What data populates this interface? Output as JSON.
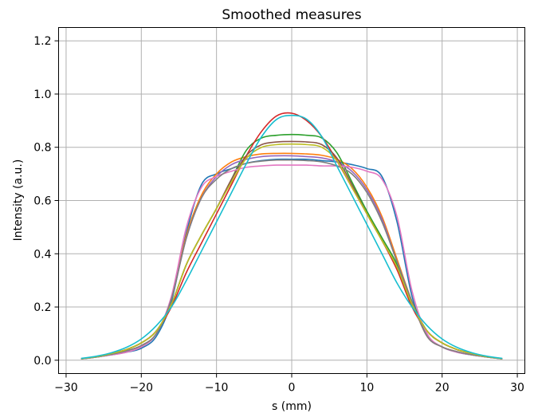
{
  "chart_data": {
    "type": "line",
    "title": "Smoothed measures",
    "xlabel": "s (mm)",
    "ylabel": "Intensity (a.u.)",
    "xlim": [
      -31,
      31
    ],
    "ylim": [
      -0.05,
      1.25
    ],
    "xticks": [
      -30,
      -20,
      -10,
      0,
      10,
      20,
      30
    ],
    "xtick_labels": [
      "−30",
      "−20",
      "−10",
      "0",
      "10",
      "20",
      "30"
    ],
    "yticks": [
      0.0,
      0.2,
      0.4,
      0.6,
      0.8,
      1.0,
      1.2
    ],
    "ytick_labels": [
      "0.0",
      "0.2",
      "0.4",
      "0.6",
      "0.8",
      "1.0",
      "1.2"
    ],
    "grid": true,
    "x": [
      -28,
      -26,
      -24,
      -22,
      -20,
      -18,
      -16,
      -14,
      -12,
      -10,
      -8,
      -6,
      -4,
      -2,
      0,
      2,
      4,
      6,
      8,
      10,
      12,
      14,
      16,
      18,
      20,
      22,
      24,
      26,
      28
    ],
    "series": [
      {
        "color": "#1f77b4",
        "values": [
          0.005,
          0.012,
          0.02,
          0.03,
          0.045,
          0.09,
          0.22,
          0.48,
          0.66,
          0.7,
          0.72,
          0.74,
          0.75,
          0.755,
          0.755,
          0.755,
          0.75,
          0.745,
          0.735,
          0.72,
          0.69,
          0.52,
          0.24,
          0.095,
          0.05,
          0.03,
          0.02,
          0.012,
          0.005
        ]
      },
      {
        "color": "#ff7f0e",
        "values": [
          0.005,
          0.012,
          0.022,
          0.035,
          0.055,
          0.1,
          0.23,
          0.47,
          0.62,
          0.7,
          0.745,
          0.765,
          0.775,
          0.777,
          0.777,
          0.775,
          0.77,
          0.755,
          0.72,
          0.65,
          0.54,
          0.38,
          0.22,
          0.09,
          0.05,
          0.032,
          0.02,
          0.012,
          0.005
        ]
      },
      {
        "color": "#2ca02c",
        "values": [
          0.006,
          0.013,
          0.025,
          0.04,
          0.065,
          0.11,
          0.21,
          0.36,
          0.47,
          0.57,
          0.68,
          0.79,
          0.835,
          0.845,
          0.848,
          0.845,
          0.835,
          0.78,
          0.67,
          0.56,
          0.46,
          0.36,
          0.22,
          0.11,
          0.065,
          0.04,
          0.025,
          0.013,
          0.006
        ]
      },
      {
        "color": "#d62728",
        "values": [
          0.006,
          0.013,
          0.025,
          0.04,
          0.065,
          0.11,
          0.2,
          0.33,
          0.44,
          0.55,
          0.66,
          0.77,
          0.86,
          0.918,
          0.928,
          0.9,
          0.84,
          0.75,
          0.65,
          0.55,
          0.45,
          0.34,
          0.2,
          0.11,
          0.065,
          0.04,
          0.025,
          0.013,
          0.006
        ]
      },
      {
        "color": "#9467bd",
        "values": [
          0.005,
          0.012,
          0.022,
          0.035,
          0.055,
          0.1,
          0.23,
          0.46,
          0.61,
          0.69,
          0.735,
          0.755,
          0.765,
          0.768,
          0.768,
          0.765,
          0.76,
          0.745,
          0.71,
          0.64,
          0.53,
          0.37,
          0.22,
          0.09,
          0.05,
          0.032,
          0.02,
          0.012,
          0.005
        ]
      },
      {
        "color": "#8c564b",
        "values": [
          0.006,
          0.013,
          0.025,
          0.04,
          0.065,
          0.11,
          0.21,
          0.36,
          0.47,
          0.57,
          0.68,
          0.77,
          0.81,
          0.82,
          0.822,
          0.82,
          0.81,
          0.76,
          0.66,
          0.55,
          0.45,
          0.35,
          0.21,
          0.11,
          0.065,
          0.04,
          0.025,
          0.013,
          0.006
        ]
      },
      {
        "color": "#e377c2",
        "values": [
          0.005,
          0.012,
          0.02,
          0.03,
          0.05,
          0.1,
          0.24,
          0.5,
          0.65,
          0.69,
          0.71,
          0.725,
          0.73,
          0.733,
          0.733,
          0.733,
          0.73,
          0.73,
          0.725,
          0.71,
          0.68,
          0.54,
          0.26,
          0.1,
          0.05,
          0.03,
          0.02,
          0.012,
          0.005
        ]
      },
      {
        "color": "#7f7f7f",
        "values": [
          0.005,
          0.012,
          0.022,
          0.035,
          0.055,
          0.1,
          0.23,
          0.46,
          0.61,
          0.68,
          0.72,
          0.74,
          0.748,
          0.752,
          0.752,
          0.75,
          0.745,
          0.73,
          0.7,
          0.63,
          0.52,
          0.37,
          0.22,
          0.09,
          0.05,
          0.032,
          0.02,
          0.012,
          0.005
        ]
      },
      {
        "color": "#bcbd22",
        "values": [
          0.006,
          0.013,
          0.025,
          0.04,
          0.065,
          0.11,
          0.21,
          0.36,
          0.47,
          0.57,
          0.67,
          0.76,
          0.8,
          0.81,
          0.812,
          0.81,
          0.8,
          0.75,
          0.65,
          0.55,
          0.45,
          0.35,
          0.21,
          0.11,
          0.065,
          0.04,
          0.025,
          0.013,
          0.006
        ]
      },
      {
        "color": "#17becf",
        "values": [
          0.007,
          0.015,
          0.028,
          0.048,
          0.08,
          0.13,
          0.2,
          0.3,
          0.41,
          0.52,
          0.63,
          0.74,
          0.84,
          0.905,
          0.92,
          0.905,
          0.84,
          0.73,
          0.62,
          0.51,
          0.4,
          0.29,
          0.2,
          0.13,
          0.08,
          0.048,
          0.028,
          0.015,
          0.007
        ]
      }
    ]
  }
}
